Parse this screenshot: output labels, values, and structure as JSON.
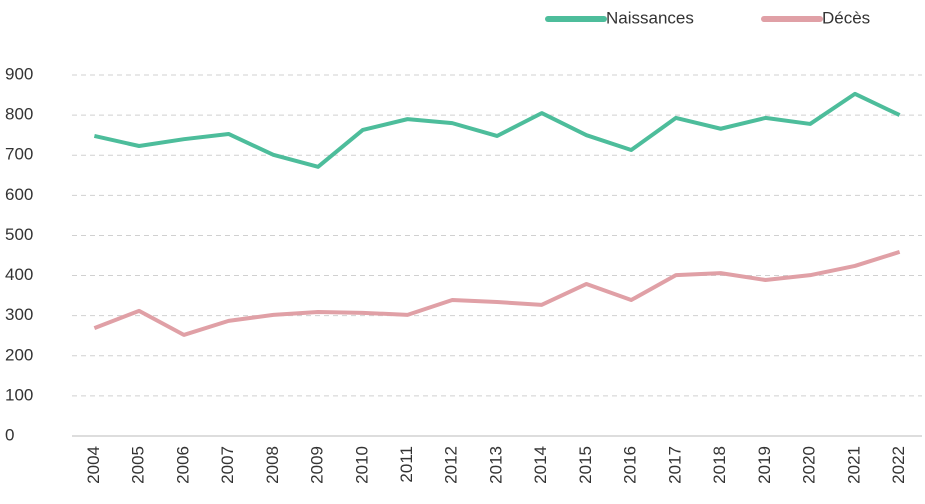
{
  "chart_data": {
    "type": "line",
    "categories": [
      "2004",
      "2005",
      "2006",
      "2007",
      "2008",
      "2009",
      "2010",
      "2011",
      "2012",
      "2013",
      "2014",
      "2015",
      "2016",
      "2017",
      "2018",
      "2019",
      "2020",
      "2021",
      "2022"
    ],
    "series": [
      {
        "name": "Naissances",
        "color": "#4dbd9b",
        "values": [
          748,
          723,
          740,
          753,
          701,
          671,
          763,
          790,
          780,
          748,
          805,
          750,
          713,
          793,
          766,
          793,
          778,
          853,
          800
        ]
      },
      {
        "name": "Décès",
        "color": "#e0a0a6",
        "values": [
          269,
          312,
          252,
          287,
          302,
          309,
          307,
          302,
          339,
          334,
          327,
          379,
          339,
          401,
          406,
          389,
          401,
          424,
          459
        ]
      }
    ],
    "ylim": [
      0,
      900
    ],
    "yticks": [
      0,
      100,
      200,
      300,
      400,
      500,
      600,
      700,
      800,
      900
    ],
    "grid": true,
    "legend": "top-right"
  }
}
